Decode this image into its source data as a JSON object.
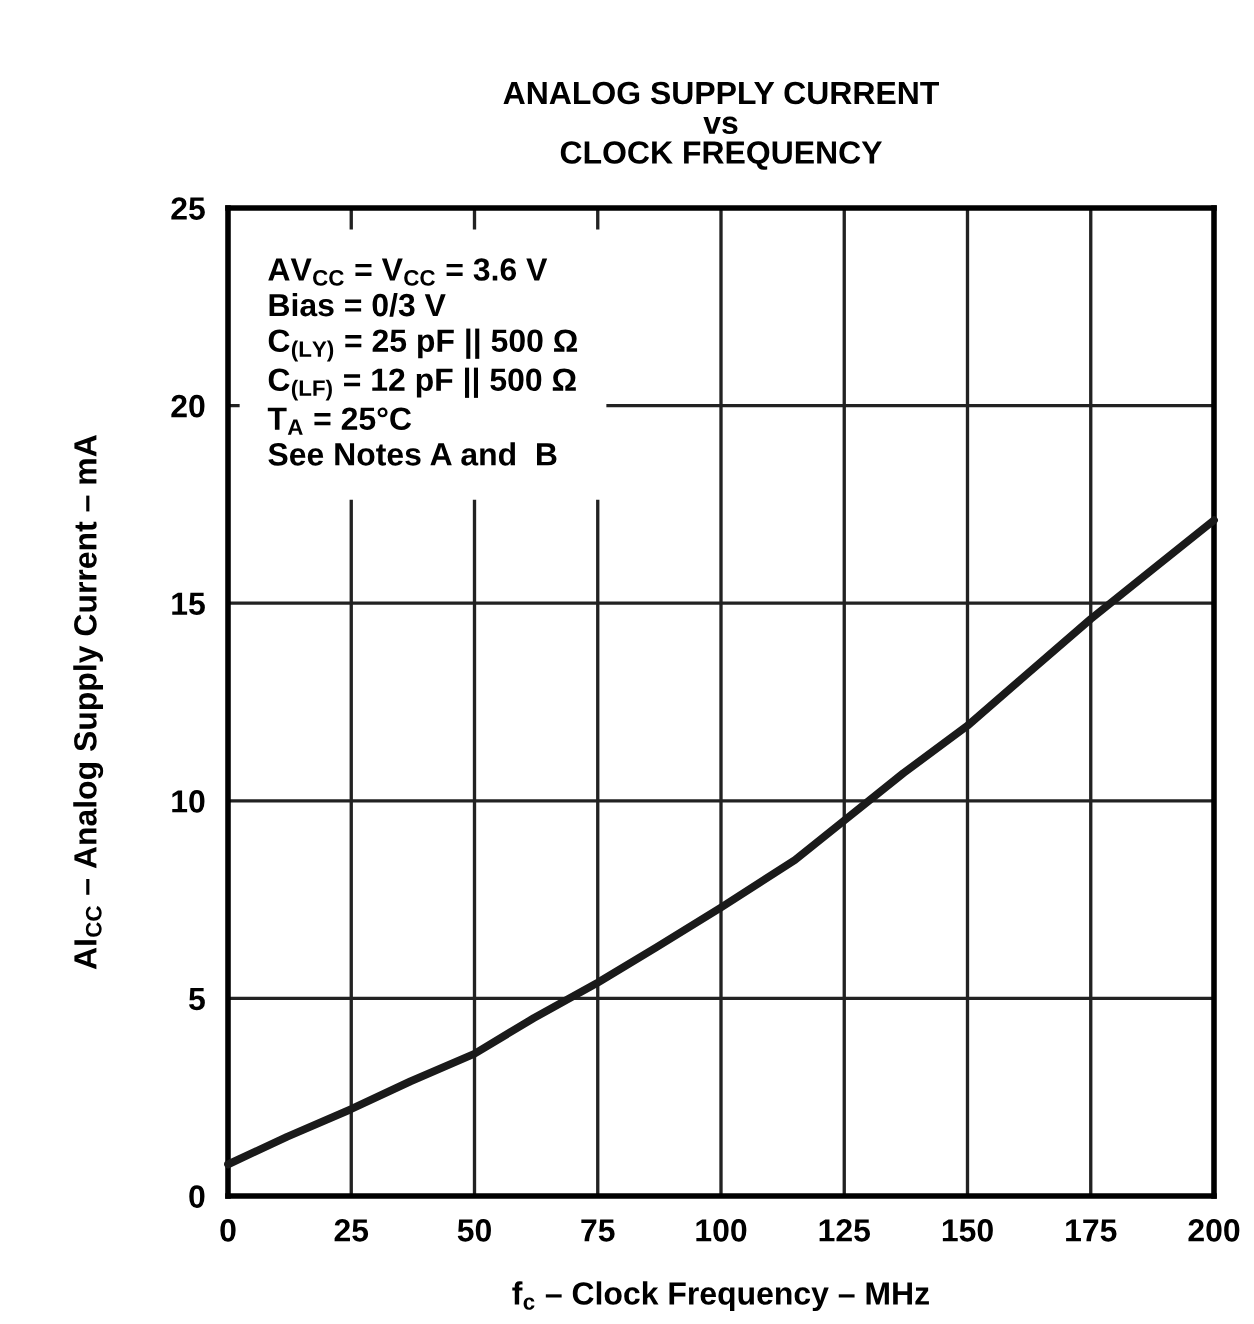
{
  "chart_data": {
    "type": "line",
    "title": "ANALOG SUPPLY CURRENT\nvs\nCLOCK FREQUENCY",
    "xlabel": "f$_{c}$ – Clock Frequency – MHz",
    "ylabel": "AI$_{CC}$ – Analog Supply Current – mA",
    "x": [
      0,
      12,
      25,
      37,
      50,
      62,
      75,
      87,
      100,
      115,
      125,
      137,
      150,
      162,
      175,
      187,
      200
    ],
    "series": [
      {
        "color": "#1a1a1a",
        "values": [
          0.8,
          1.5,
          2.2,
          2.9,
          3.6,
          4.5,
          5.4,
          6.3,
          7.3,
          8.5,
          9.5,
          10.7,
          11.9,
          13.2,
          14.6,
          15.8,
          17.1
        ]
      }
    ],
    "xlim": [
      0,
      200
    ],
    "ylim": [
      0,
      25
    ],
    "xticks": [
      0,
      25,
      50,
      75,
      100,
      125,
      150,
      175,
      200
    ],
    "yticks": [
      0,
      5,
      10,
      15,
      20,
      25
    ],
    "grid": true,
    "marker": "none",
    "line_style": "solid",
    "annotations": [
      "AV$_{CC}$ = V$_{CC}$ = 3.6 V",
      "Bias = 0/3 V",
      "C$_{(LY)}$ = 25 pF || 500 Ω",
      "C$_{(LF)}$ = 12 pF || 500 Ω",
      "T$_{A}$ = 25°C",
      "See Notes A and  B"
    ]
  }
}
